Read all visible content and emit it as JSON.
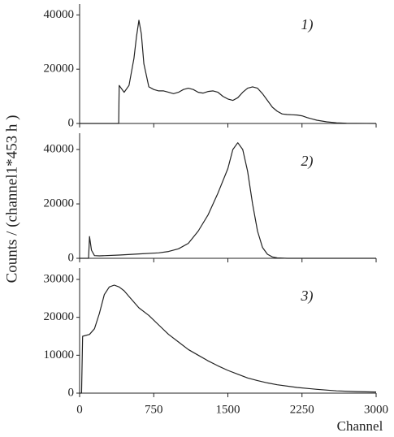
{
  "chart_data": [
    {
      "type": "line",
      "label": "1)",
      "color": "#222",
      "x": [
        0,
        395,
        400,
        450,
        500,
        550,
        575,
        600,
        625,
        650,
        700,
        750,
        800,
        850,
        900,
        950,
        1000,
        1050,
        1100,
        1150,
        1200,
        1250,
        1300,
        1350,
        1400,
        1450,
        1500,
        1550,
        1600,
        1650,
        1700,
        1750,
        1800,
        1850,
        1900,
        1950,
        2000,
        2050,
        2100,
        2150,
        2200,
        2250,
        2300,
        2400,
        2500,
        2600,
        2700,
        2800,
        3000
      ],
      "values": [
        0,
        0,
        14000,
        11500,
        14000,
        24000,
        32000,
        38000,
        33000,
        22000,
        13500,
        12500,
        12000,
        12000,
        11500,
        11000,
        11500,
        12500,
        13000,
        12500,
        11500,
        11200,
        11800,
        12000,
        11500,
        10000,
        9000,
        8500,
        9500,
        11500,
        13000,
        13500,
        13000,
        11000,
        8500,
        6000,
        4500,
        3500,
        3300,
        3200,
        3100,
        2800,
        2200,
        1200,
        600,
        250,
        100,
        50,
        0
      ],
      "xlim": [
        0,
        3000
      ],
      "ylim": [
        0,
        44000
      ],
      "yticks": [
        0,
        20000,
        40000
      ]
    },
    {
      "type": "line",
      "label": "2)",
      "color": "#222",
      "ylabel": "Counts / (channel1*453 h )",
      "x": [
        0,
        90,
        100,
        120,
        150,
        200,
        400,
        600,
        800,
        900,
        1000,
        1100,
        1200,
        1300,
        1400,
        1500,
        1550,
        1600,
        1650,
        1700,
        1750,
        1800,
        1850,
        1900,
        1950,
        2000,
        2100,
        3000
      ],
      "values": [
        0,
        0,
        8000,
        3000,
        1000,
        900,
        1200,
        1600,
        2000,
        2500,
        3500,
        5500,
        10000,
        16000,
        24000,
        33000,
        40000,
        42500,
        40000,
        32000,
        20000,
        10000,
        4000,
        1500,
        500,
        150,
        0,
        0
      ],
      "xlim": [
        0,
        3000
      ],
      "ylim": [
        0,
        46000
      ],
      "yticks": [
        0,
        20000,
        40000
      ]
    },
    {
      "type": "line",
      "label": "3)",
      "color": "#222",
      "xlabel": "Channel",
      "x": [
        0,
        20,
        30,
        100,
        150,
        200,
        250,
        300,
        350,
        400,
        450,
        500,
        550,
        600,
        700,
        800,
        900,
        1000,
        1100,
        1200,
        1300,
        1400,
        1500,
        1600,
        1700,
        1800,
        1900,
        2000,
        2200,
        2400,
        2600,
        2800,
        3000
      ],
      "values": [
        0,
        0,
        15000,
        15500,
        17000,
        21000,
        26000,
        28000,
        28500,
        28000,
        27000,
        25500,
        24000,
        22500,
        20500,
        18000,
        15500,
        13500,
        11500,
        10000,
        8500,
        7200,
        6000,
        5000,
        4000,
        3300,
        2700,
        2200,
        1500,
        1000,
        600,
        400,
        300
      ],
      "xlim": [
        0,
        3000
      ],
      "ylim": [
        0,
        33000
      ],
      "yticks": [
        0,
        10000,
        20000,
        30000
      ],
      "xticks": [
        0,
        750,
        1500,
        2250,
        3000
      ]
    }
  ]
}
